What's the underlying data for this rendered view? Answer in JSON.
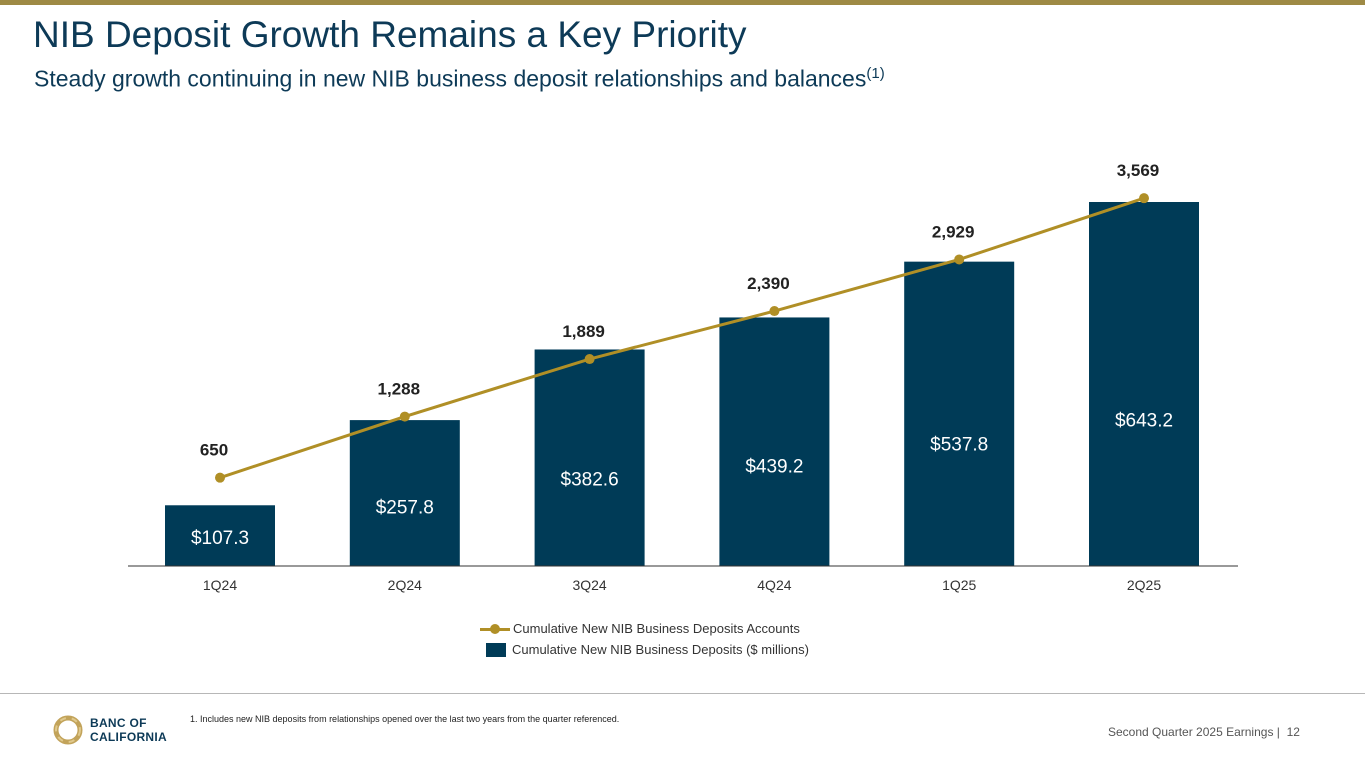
{
  "header": {
    "title": "NIB Deposit Growth Remains a Key Priority",
    "subtitle": "Steady growth continuing in new NIB business deposit relationships and balances",
    "subtitle_sup": "(1)"
  },
  "chart_data": {
    "type": "bar",
    "categories": [
      "1Q24",
      "2Q24",
      "3Q24",
      "4Q24",
      "1Q25",
      "2Q25"
    ],
    "series": [
      {
        "name": "Cumulative New NIB Business Deposits ($ millions)",
        "type": "bar",
        "values": [
          107.3,
          257.8,
          382.6,
          439.2,
          537.8,
          643.2
        ],
        "labels": [
          "$107.3",
          "$257.8",
          "$382.6",
          "$439.2",
          "$537.8",
          "$643.2"
        ],
        "color": "#003b57"
      },
      {
        "name": "Cumulative New NIB Business Deposits Accounts",
        "type": "line",
        "values": [
          650,
          1288,
          1889,
          2390,
          2929,
          3569
        ],
        "labels": [
          "650",
          "1,288",
          "1,889",
          "2,390",
          "2,929",
          "3,569"
        ],
        "color": "#b08f26"
      }
    ],
    "legend_position": "bottom",
    "grid": false
  },
  "legend": {
    "line_label": "Cumulative New NIB Business Deposits Accounts",
    "bar_label": "Cumulative New NIB Business Deposits ($ millions)"
  },
  "footnote": "1.  Includes new NIB deposits from relationships opened over the last two years from the quarter referenced.",
  "logo": {
    "line1": "BANC OF",
    "line2": "CALIFORNIA"
  },
  "footer": {
    "label": "Second Quarter 2025 Earnings |",
    "page": "12"
  },
  "colors": {
    "navy": "#003b57",
    "gold": "#b08f26",
    "topbar": "#9e8a45",
    "title": "#0d3a57"
  }
}
